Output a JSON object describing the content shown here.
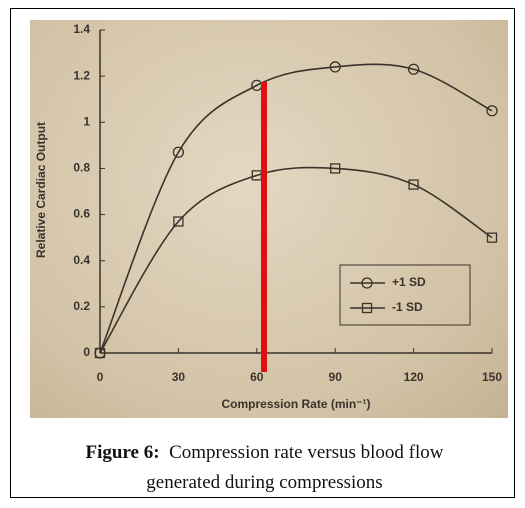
{
  "chart_data": {
    "type": "line",
    "y_label": "Relative Cardiac Output",
    "x_label": "Compression Rate (min⁻¹)",
    "x": [
      0,
      30,
      60,
      90,
      120,
      150
    ],
    "series": [
      {
        "name": "+1 SD",
        "marker": "circle",
        "color": "#3a332c",
        "values": [
          0,
          0.87,
          1.16,
          1.24,
          1.23,
          1.05
        ]
      },
      {
        "name": "-1 SD",
        "marker": "square",
        "color": "#3a332c",
        "values": [
          0,
          0.57,
          0.77,
          0.8,
          0.73,
          0.5
        ]
      }
    ],
    "xlim": [
      0,
      150
    ],
    "xticks": [
      0,
      30,
      60,
      90,
      120,
      150
    ],
    "ylim": [
      0,
      1.4
    ],
    "yticks": [
      0,
      0.2,
      0.4,
      0.6,
      0.8,
      1,
      1.2,
      1.4
    ],
    "legend": "lower right"
  },
  "caption": {
    "label": "Figure 6:",
    "text": "Compression rate versus blood flow generated during compressions"
  }
}
